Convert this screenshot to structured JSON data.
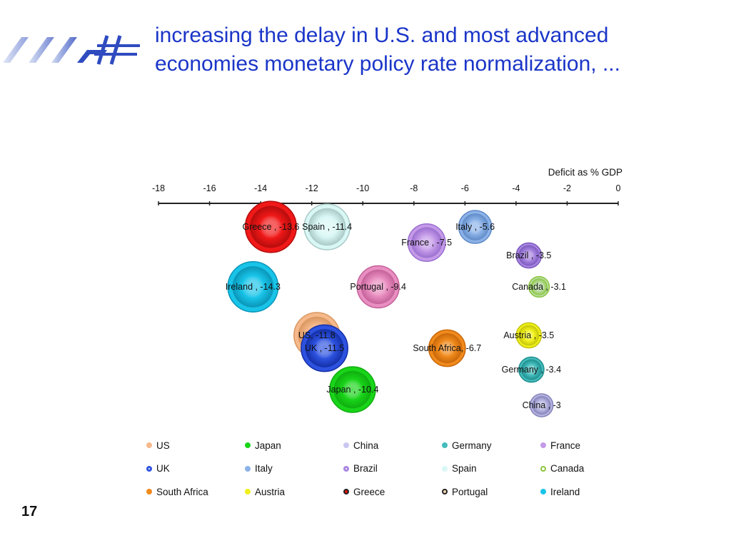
{
  "slide": {
    "title_line1": "increasing the delay in U.S. and most advanced",
    "title_line2": "economies monetary policy rate normalization, ...",
    "page_number": "17",
    "logo_icon": "stylized-slash-and-hash-logo"
  },
  "chart_data": {
    "type": "bubble",
    "xlabel": "Deficit as % GDP",
    "xlim": [
      -18,
      0
    ],
    "x_ticks": [
      -18,
      -16,
      -14,
      -12,
      -10,
      -8,
      -6,
      -4,
      -2,
      0
    ],
    "x_tick_labels": [
      "-18",
      "-16",
      "-14",
      "-12",
      "-10",
      "-8",
      "-6",
      "-4",
      "-2",
      "0"
    ],
    "axis_position": "top",
    "grid": false,
    "legend_position": "bottom",
    "series": [
      {
        "name": "US",
        "label": "US, -11.8",
        "x": -11.8,
        "row": 4,
        "size": 1.0,
        "color": "#f6b98c",
        "edge": "#d9965f",
        "label_side": "inside"
      },
      {
        "name": "Japan",
        "label": "Japan , -10.4",
        "x": -10.4,
        "row": 7,
        "size": 1.0,
        "color": "#19d419",
        "edge": "#0fae0f",
        "label_side": "inside"
      },
      {
        "name": "China",
        "label": "China , -3",
        "x": -3.0,
        "row": 8,
        "size": 0.5,
        "color": "#b7b5e2",
        "edge": "#8583b8",
        "label_side": "inside"
      },
      {
        "name": "Germany",
        "label": "Germany , -3.4",
        "x": -3.4,
        "row": 6,
        "size": 0.55,
        "color": "#44bcbc",
        "edge": "#1f8e8e",
        "label_side": "inside"
      },
      {
        "name": "France",
        "label": "France , -7.5",
        "x": -7.5,
        "row": 1,
        "size": 0.82,
        "color": "#c49ae8",
        "edge": "#9a6fd0",
        "label_side": "inside"
      },
      {
        "name": "UK",
        "label": "UK , -11.5",
        "x": -11.5,
        "row": 5,
        "size": 1.02,
        "color": "#2d52e0",
        "edge": "#1430a8",
        "label_side": "inside"
      },
      {
        "name": "Italy",
        "label": "Italy , -5.6",
        "x": -5.6,
        "row": 0,
        "size": 0.72,
        "color": "#8cb2e8",
        "edge": "#5f8bc7",
        "label_side": "inside"
      },
      {
        "name": "Brazil",
        "label": "Brazil , -3.5",
        "x": -3.5,
        "row": 2,
        "size": 0.55,
        "color": "#a884e0",
        "edge": "#7b5bbf",
        "label_side": "inside"
      },
      {
        "name": "Spain",
        "label": "Spain , -11.4",
        "x": -11.4,
        "row": 0,
        "size": 1.0,
        "color": "#d9f7f5",
        "edge": "#a9c9c7",
        "label_side": "inside"
      },
      {
        "name": "Canada",
        "label": "Canada , -3.1",
        "x": -3.1,
        "row": 3,
        "size": 0.45,
        "color": "#b8dca0",
        "edge": "#8cc63f",
        "label_side": "inside"
      },
      {
        "name": "South Africa",
        "label": "South Africa, -6.7",
        "x": -6.7,
        "row": 5,
        "size": 0.8,
        "color": "#f08a1c",
        "edge": "#c9680a",
        "label_side": "inside"
      },
      {
        "name": "Austria",
        "label": "Austria , -3.5",
        "x": -3.5,
        "row": 4,
        "size": 0.55,
        "color": "#f0f01a",
        "edge": "#c4c40d",
        "label_side": "inside"
      },
      {
        "name": "Greece",
        "label": "Greece , -13.6",
        "x": -13.6,
        "row": 0,
        "size": 1.12,
        "color": "#f01818",
        "edge": "#b50c0c",
        "label_side": "inside"
      },
      {
        "name": "Portugal",
        "label": "Portugal , -9.4",
        "x": -9.4,
        "row": 3,
        "size": 0.92,
        "color": "#e98ec0",
        "edge": "#c4629a",
        "label_side": "inside"
      },
      {
        "name": "Ireland",
        "label": "Ireland , -14.3",
        "x": -14.3,
        "row": 3,
        "size": 1.1,
        "color": "#18c4e8",
        "edge": "#0a95b8",
        "label_side": "inside"
      }
    ]
  },
  "legend": {
    "items": [
      {
        "name": "US",
        "color": "#f6b98c",
        "style": "filled"
      },
      {
        "name": "Japan",
        "color": "#19d419",
        "style": "filled"
      },
      {
        "name": "China",
        "color": "#c9c7ef",
        "style": "filled"
      },
      {
        "name": "Germany",
        "color": "#44bcbc",
        "style": "filled"
      },
      {
        "name": "France",
        "color": "#c49ae8",
        "style": "filled"
      },
      {
        "name": "UK",
        "color": "#2d52e0",
        "style": "ring-dot"
      },
      {
        "name": "Italy",
        "color": "#8cb2e8",
        "style": "filled"
      },
      {
        "name": "Brazil",
        "color": "#a884e0",
        "style": "ring-dot"
      },
      {
        "name": "Spain",
        "color": "#d9f7f5",
        "style": "filled"
      },
      {
        "name": "Canada",
        "color": "#8cc63f",
        "style": "ring"
      },
      {
        "name": "South Africa",
        "color": "#f08a1c",
        "style": "filled"
      },
      {
        "name": "Austria",
        "color": "#f0f01a",
        "style": "filled"
      },
      {
        "name": "Greece",
        "color": "#e01010",
        "style": "ring-dark"
      },
      {
        "name": "Portugal",
        "color": "#f6d9b0",
        "style": "ring-dark"
      },
      {
        "name": "Ireland",
        "color": "#18c4e8",
        "style": "filled"
      }
    ]
  }
}
